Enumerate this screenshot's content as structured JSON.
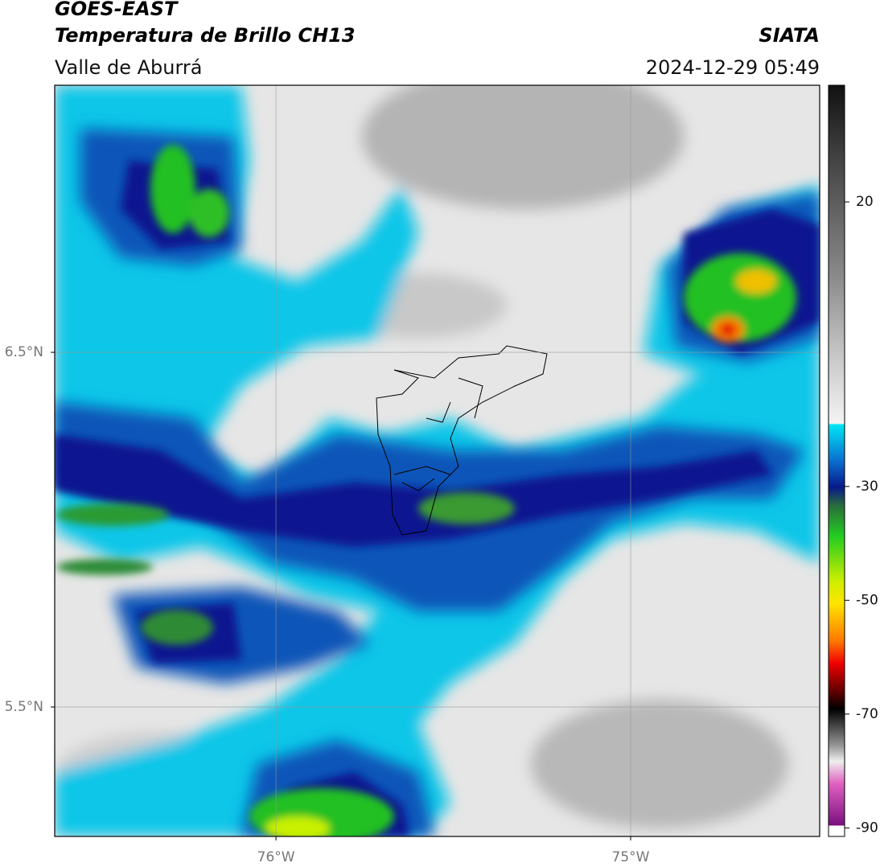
{
  "chart_data": {
    "type": "map",
    "title": "GOES-EAST",
    "subtitle": "Temperatura de Brillo CH13",
    "region": "Valle de Aburrá",
    "source": "SIATA",
    "timestamp": "2024-12-29 05:49",
    "xlim": [
      -76.624,
      -74.467
    ],
    "ylim": [
      5.135,
      7.253
    ],
    "xticks": [
      {
        "value": -76,
        "label": "76°W"
      },
      {
        "value": -75,
        "label": "75°W"
      }
    ],
    "yticks": [
      {
        "value": 5.5,
        "label": "5.5°N"
      },
      {
        "value": 6.5,
        "label": "6.5°N"
      }
    ],
    "grid": true,
    "colorbar_lim": [
      -91.5,
      40.5
    ],
    "colorbar_ticks": [
      20,
      -30,
      -50,
      -70,
      -90
    ]
  }
}
